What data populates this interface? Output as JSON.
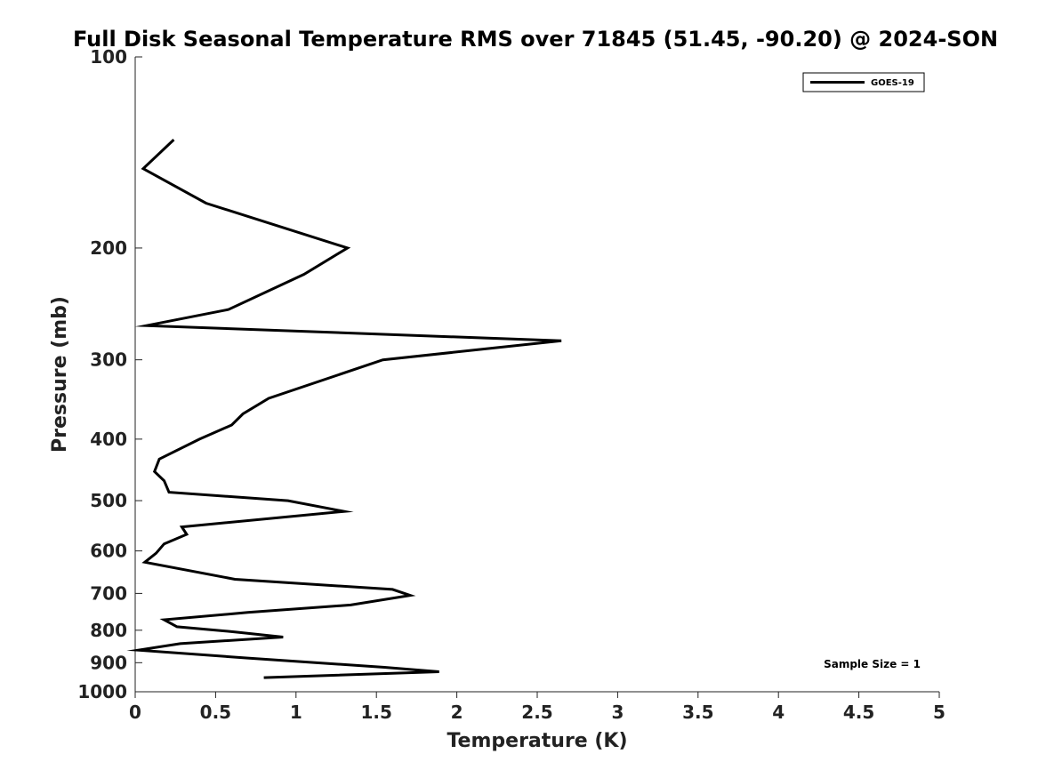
{
  "chart_data": {
    "type": "line",
    "title": "Full Disk Seasonal Temperature RMS over 71845 (51.45, -90.20) @ 2024-SON",
    "xlabel": "Temperature (K)",
    "ylabel": "Pressure (mb)",
    "xlim": [
      0,
      5
    ],
    "ylim": [
      100,
      1000
    ],
    "y_scale": "log",
    "y_inverted": true,
    "x_ticks": [
      "0",
      "0.5",
      "1",
      "1.5",
      "2",
      "2.5",
      "3",
      "3.5",
      "4",
      "4.5",
      "5"
    ],
    "x_tick_values": [
      0,
      0.5,
      1,
      1.5,
      2,
      2.5,
      3,
      3.5,
      4,
      4.5,
      5
    ],
    "y_ticks": [
      "100",
      "200",
      "300",
      "400",
      "500",
      "600",
      "700",
      "800",
      "900",
      "1000"
    ],
    "y_tick_values": [
      100,
      200,
      300,
      400,
      500,
      600,
      700,
      800,
      900,
      1000
    ],
    "legend_position": "top-right",
    "grid": false,
    "annotation": "Sample Size = 1",
    "series": [
      {
        "name": "GOES-19",
        "color": "#000000",
        "points": [
          {
            "x": 0.24,
            "y": 135
          },
          {
            "x": 0.05,
            "y": 150
          },
          {
            "x": 0.44,
            "y": 170
          },
          {
            "x": 1.32,
            "y": 200
          },
          {
            "x": 1.05,
            "y": 220
          },
          {
            "x": 0.58,
            "y": 250
          },
          {
            "x": 0.07,
            "y": 265
          },
          {
            "x": 2.65,
            "y": 280
          },
          {
            "x": 1.54,
            "y": 300
          },
          {
            "x": 0.83,
            "y": 345
          },
          {
            "x": 0.67,
            "y": 365
          },
          {
            "x": 0.6,
            "y": 380
          },
          {
            "x": 0.4,
            "y": 400
          },
          {
            "x": 0.15,
            "y": 430
          },
          {
            "x": 0.12,
            "y": 450
          },
          {
            "x": 0.18,
            "y": 465
          },
          {
            "x": 0.21,
            "y": 485
          },
          {
            "x": 0.95,
            "y": 500
          },
          {
            "x": 1.3,
            "y": 520
          },
          {
            "x": 0.29,
            "y": 550
          },
          {
            "x": 0.32,
            "y": 565
          },
          {
            "x": 0.18,
            "y": 585
          },
          {
            "x": 0.13,
            "y": 605
          },
          {
            "x": 0.06,
            "y": 625
          },
          {
            "x": 0.62,
            "y": 665
          },
          {
            "x": 1.6,
            "y": 690
          },
          {
            "x": 1.71,
            "y": 705
          },
          {
            "x": 1.34,
            "y": 730
          },
          {
            "x": 0.7,
            "y": 750
          },
          {
            "x": 0.18,
            "y": 770
          },
          {
            "x": 0.26,
            "y": 790
          },
          {
            "x": 0.62,
            "y": 805
          },
          {
            "x": 0.92,
            "y": 820
          },
          {
            "x": 0.28,
            "y": 840
          },
          {
            "x": 0.02,
            "y": 860
          },
          {
            "x": 0.7,
            "y": 885
          },
          {
            "x": 1.55,
            "y": 915
          },
          {
            "x": 1.89,
            "y": 930
          },
          {
            "x": 0.8,
            "y": 950
          }
        ]
      }
    ]
  }
}
